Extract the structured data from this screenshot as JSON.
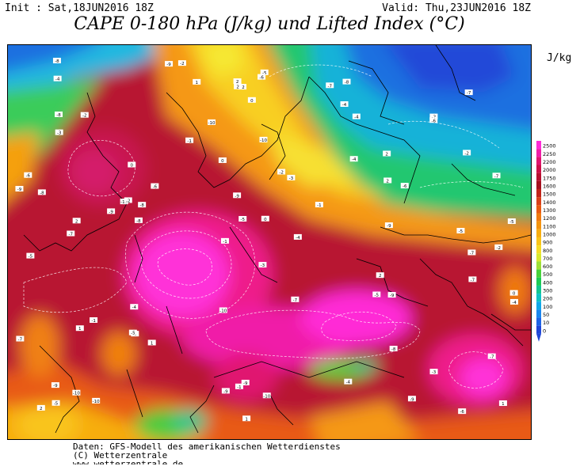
{
  "header": {
    "init_text": "Init : Sat,18JUN2016 18Z",
    "valid_text": "Valid: Thu,23JUN2016 18Z",
    "title": "CAPE 0-180 hPa (J/kg) und Lifted Index (°C)"
  },
  "legend": {
    "unit": "J/kg",
    "levels": [
      {
        "label": "2500",
        "color": "#ff2bd6"
      },
      {
        "label": "2250",
        "color": "#f01ea8"
      },
      {
        "label": "2200",
        "color": "#e0156f"
      },
      {
        "label": "2000",
        "color": "#cc1048"
      },
      {
        "label": "1750",
        "color": "#b7102f"
      },
      {
        "label": "1600",
        "color": "#a5101f"
      },
      {
        "label": "1500",
        "color": "#c0241a"
      },
      {
        "label": "1400",
        "color": "#d8401a"
      },
      {
        "label": "1300",
        "color": "#e85a12"
      },
      {
        "label": "1200",
        "color": "#f07a10"
      },
      {
        "label": "1100",
        "color": "#f4940e"
      },
      {
        "label": "1000",
        "color": "#f7ad10"
      },
      {
        "label": "900",
        "color": "#f9c41a"
      },
      {
        "label": "800",
        "color": "#f5dc28"
      },
      {
        "label": "700",
        "color": "#d8e830"
      },
      {
        "label": "600",
        "color": "#9ee038"
      },
      {
        "label": "500",
        "color": "#48d23a"
      },
      {
        "label": "400",
        "color": "#1ecb54"
      },
      {
        "label": "300",
        "color": "#14c690"
      },
      {
        "label": "200",
        "color": "#10c2c4"
      },
      {
        "label": "100",
        "color": "#12a8e8"
      },
      {
        "label": "50",
        "color": "#1a86ee"
      },
      {
        "label": "10",
        "color": "#1e64e6"
      },
      {
        "label": "0",
        "color": "#2048d8"
      }
    ]
  },
  "map": {
    "lifted_index_labels": [
      "-2",
      "-3",
      "-4",
      "-5",
      "-6",
      "-7",
      "-8",
      "-9",
      "-10",
      "-1",
      "0",
      "1",
      "2"
    ]
  },
  "footer": {
    "line1": "Daten: GFS-Modell des amerikanischen Wetterdienstes",
    "line2": "(C) Wetterzentrale",
    "line3": "www.wetterzentrale.de"
  }
}
